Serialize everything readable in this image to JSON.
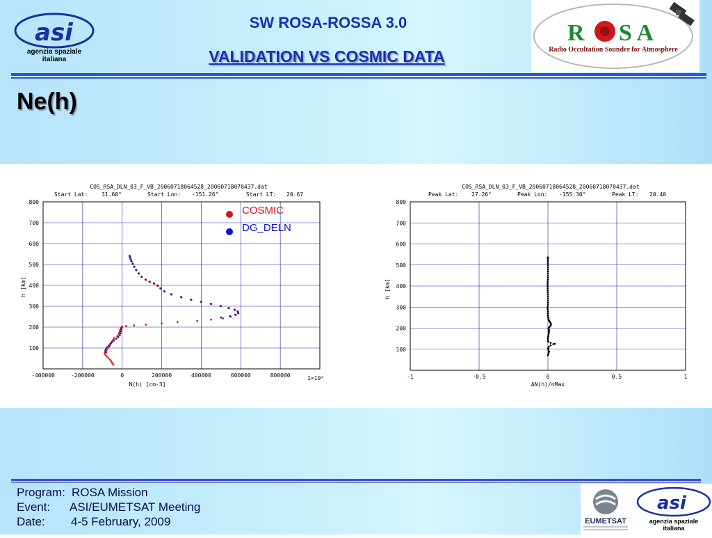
{
  "header": {
    "title": "SW ROSA-ROSSA 3.0",
    "subtitle": "VALIDATION VS COSMIC DATA",
    "section_title": "Ne(h)",
    "asi_logo_text_1": "agenzia spaziale",
    "asi_logo_text_2": "italiana",
    "rosa_logo_r": "R",
    "rosa_logo_sa": "S A",
    "rosa_logo_caption": "Radio Occultation Sounder for Atmosphere"
  },
  "legend": {
    "items": [
      {
        "label": "COSMIC",
        "color": "#e01010"
      },
      {
        "label": "DG_DELN",
        "color": "#1010d0"
      }
    ]
  },
  "chart_data": [
    {
      "type": "scatter",
      "title": "COS_RSA_DLN_03_F_VB_20060718064528_20060718070437.dat",
      "subtitle_fields": [
        {
          "label": "Start Lat:",
          "value": "31.60°"
        },
        {
          "label": "Start Lon:",
          "value": "-151.26°"
        },
        {
          "label": "Start LT:",
          "value": "20.67"
        }
      ],
      "xlabel": "N(h) [cm-3]",
      "ylabel": "h [km]",
      "x_multiplier": "1×10⁶",
      "xlim": [
        -400000,
        1000000
      ],
      "ylim": [
        0,
        800
      ],
      "x_ticks": [
        -400000,
        -200000,
        0,
        200000,
        400000,
        600000,
        800000
      ],
      "x_tick_labels": [
        "-400000",
        "-200000",
        "0",
        "200000",
        "400000",
        "600000",
        "800000"
      ],
      "y_ticks": [
        100,
        200,
        300,
        400,
        500,
        600,
        700,
        800
      ],
      "y_tick_labels": [
        "100",
        "200",
        "300",
        "400",
        "500",
        "600",
        "700",
        "800"
      ],
      "grid": true,
      "series": [
        {
          "name": "COSMIC",
          "color": "#e01010",
          "points": [
            [
              -45000,
              20
            ],
            [
              -50000,
              28
            ],
            [
              -55000,
              36
            ],
            [
              -62000,
              44
            ],
            [
              -70000,
              52
            ],
            [
              -78000,
              60
            ],
            [
              -85000,
              68
            ],
            [
              -88000,
              76
            ],
            [
              -85000,
              84
            ],
            [
              -78000,
              92
            ],
            [
              -70000,
              100
            ],
            [
              -65000,
              108
            ],
            [
              -60000,
              116
            ],
            [
              -55000,
              124
            ],
            [
              -50000,
              132
            ],
            [
              -45000,
              140
            ],
            [
              -40000,
              148
            ],
            [
              -25000,
              156
            ],
            [
              -18000,
              164
            ],
            [
              -15000,
              172
            ],
            [
              -12000,
              180
            ],
            [
              -10000,
              188
            ],
            [
              -5000,
              196
            ],
            [
              0,
              202
            ],
            [
              20000,
              205
            ],
            [
              60000,
              208
            ],
            [
              120000,
              212
            ],
            [
              200000,
              218
            ],
            [
              280000,
              224
            ],
            [
              380000,
              230
            ],
            [
              450000,
              236
            ],
            [
              510000,
              242
            ],
            [
              550000,
              250
            ],
            [
              575000,
              258
            ],
            [
              588000,
              266
            ],
            [
              585000,
              274
            ],
            [
              570000,
              282
            ],
            [
              540000,
              290
            ],
            [
              500000,
              300
            ],
            [
              450000,
              310
            ],
            [
              400000,
              320
            ],
            [
              350000,
              330
            ],
            [
              300000,
              342
            ],
            [
              250000,
              356
            ],
            [
              215000,
              370
            ],
            [
              195000,
              384
            ],
            [
              180000,
              398
            ],
            [
              162000,
              408
            ],
            [
              140000,
              416
            ],
            [
              120000,
              426
            ],
            [
              100000,
              440
            ],
            [
              85000,
              456
            ],
            [
              72000,
              472
            ],
            [
              62000,
              488
            ],
            [
              55000,
              502
            ],
            [
              48000,
              514
            ],
            [
              44000,
              524
            ],
            [
              40000,
              534
            ],
            [
              38000,
              540
            ]
          ]
        },
        {
          "name": "DG_DELN",
          "color": "#2a1aa8",
          "points": [
            [
              -80000,
              80
            ],
            [
              -85000,
              88
            ],
            [
              -82000,
              96
            ],
            [
              -76000,
              104
            ],
            [
              -68000,
              112
            ],
            [
              -60000,
              120
            ],
            [
              -52000,
              128
            ],
            [
              -42000,
              136
            ],
            [
              -30000,
              144
            ],
            [
              -20000,
              152
            ],
            [
              -12000,
              160
            ],
            [
              -8000,
              170
            ],
            [
              -6000,
              180
            ],
            [
              -4000,
              190
            ],
            [
              -2000,
              198
            ],
            [
              500000,
              246
            ],
            [
              545000,
              252
            ],
            [
              572000,
              260
            ],
            [
              586000,
              268
            ],
            [
              584000,
              276
            ],
            [
              568000,
              284
            ],
            [
              538000,
              292
            ],
            [
              498000,
              302
            ],
            [
              448000,
              312
            ],
            [
              398000,
              322
            ],
            [
              348000,
              332
            ],
            [
              298000,
              344
            ],
            [
              248000,
              358
            ],
            [
              213000,
              372
            ],
            [
              193000,
              386
            ],
            [
              178000,
              400
            ],
            [
              160000,
              410
            ],
            [
              138000,
              418
            ],
            [
              118000,
              428
            ],
            [
              98000,
              442
            ],
            [
              83000,
              458
            ],
            [
              70000,
              474
            ],
            [
              60000,
              490
            ],
            [
              53000,
              504
            ],
            [
              46000,
              516
            ],
            [
              42000,
              526
            ],
            [
              39000,
              536
            ],
            [
              37000,
              542
            ]
          ]
        }
      ]
    },
    {
      "type": "scatter",
      "title": "COS_RSA_DLN_03_F_VB_20060718064528_20060718070437.dat",
      "subtitle_fields": [
        {
          "label": "Peak Lat:",
          "value": "27.26°"
        },
        {
          "label": "Peak Lon:",
          "value": "-155.30°"
        },
        {
          "label": "Peak LT:",
          "value": "20.40"
        }
      ],
      "xlabel": "ΔN(h)/nMax",
      "ylabel": "h [km]",
      "xlim": [
        -1,
        1
      ],
      "ylim": [
        0,
        800
      ],
      "x_ticks": [
        -1,
        -0.5,
        0,
        0.5,
        1
      ],
      "x_tick_labels": [
        "-1",
        "-0.5",
        "0",
        "0.5",
        "1"
      ],
      "y_ticks": [
        100,
        200,
        300,
        400,
        500,
        600,
        700,
        800
      ],
      "y_tick_labels": [
        "100",
        "200",
        "300",
        "400",
        "500",
        "600",
        "700",
        "800"
      ],
      "grid": true,
      "series": [
        {
          "name": "",
          "color": "#000000",
          "points": [
            [
              0.0,
              72
            ],
            [
              0.004,
              80
            ],
            [
              0.008,
              88
            ],
            [
              0.004,
              96
            ],
            [
              0.002,
              104
            ],
            [
              0.006,
              112
            ],
            [
              0.02,
              118
            ],
            [
              0.04,
              124
            ],
            [
              0.05,
              126
            ],
            [
              0.02,
              130
            ],
            [
              0.002,
              136
            ],
            [
              0.0,
              144
            ],
            [
              0.0,
              152
            ],
            [
              0.002,
              160
            ],
            [
              0.004,
              168
            ],
            [
              0.006,
              176
            ],
            [
              0.008,
              184
            ],
            [
              0.008,
              192
            ],
            [
              0.004,
              200
            ],
            [
              0.012,
              206
            ],
            [
              0.02,
              212
            ],
            [
              0.022,
              218
            ],
            [
              0.02,
              224
            ],
            [
              0.014,
              230
            ],
            [
              0.008,
              236
            ],
            [
              0.004,
              244
            ],
            [
              0.002,
              252
            ],
            [
              0.0,
              260
            ],
            [
              0.0,
              270
            ],
            [
              0.0,
              280
            ],
            [
              -0.002,
              290
            ],
            [
              -0.002,
              300
            ],
            [
              0.0,
              310
            ],
            [
              0.0,
              320
            ],
            [
              0.0,
              330
            ],
            [
              0.0,
              340
            ],
            [
              0.0,
              350
            ],
            [
              0.0,
              360
            ],
            [
              0.0,
              370
            ],
            [
              -0.002,
              380
            ],
            [
              -0.002,
              390
            ],
            [
              -0.002,
              400
            ],
            [
              -0.002,
              410
            ],
            [
              -0.002,
              420
            ],
            [
              0.0,
              430
            ],
            [
              0.0,
              440
            ],
            [
              0.0,
              450
            ],
            [
              0.0,
              460
            ],
            [
              0.0,
              470
            ],
            [
              0.0,
              480
            ],
            [
              0.0,
              490
            ],
            [
              0.0,
              500
            ],
            [
              0.0,
              510
            ],
            [
              0.0,
              520
            ],
            [
              0.0,
              530
            ],
            [
              0.0,
              536
            ]
          ]
        }
      ]
    }
  ],
  "footer": {
    "program_label": "Program:",
    "program_value": "ROSA Mission",
    "event_label": "Event:",
    "event_value": "ASI/EUMETSAT Meeting",
    "date_label": "Date:",
    "date_value": "4-5 February, 2009",
    "eumetsat_label": "EUMETSAT"
  }
}
